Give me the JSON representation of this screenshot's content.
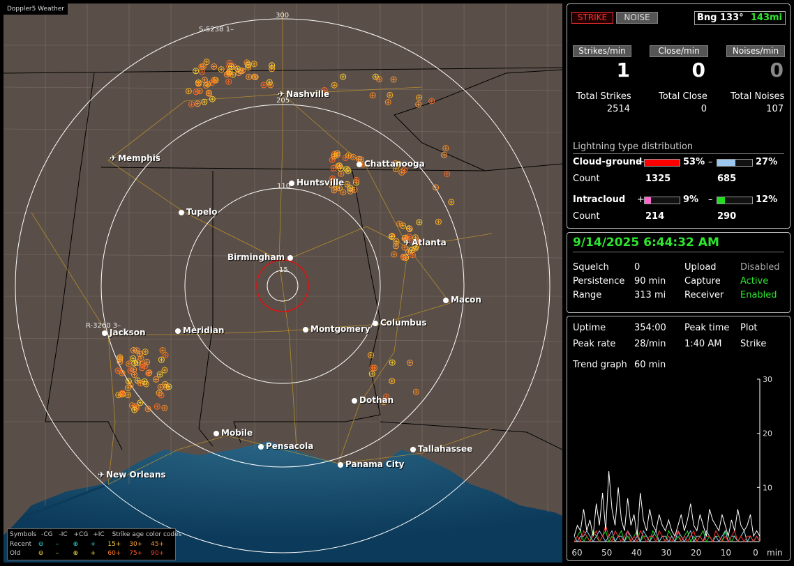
{
  "app_title": "Doppler5 Weather",
  "map": {
    "range_labels": [
      "300",
      "205",
      "110",
      "15"
    ],
    "tracks": [
      "S-5238 1–",
      "R-3260 3–"
    ],
    "cities": [
      {
        "name": "Nashville",
        "type": "airport"
      },
      {
        "name": "Memphis",
        "type": "airport"
      },
      {
        "name": "Chattanooga",
        "type": "city"
      },
      {
        "name": "Huntsville",
        "type": "city"
      },
      {
        "name": "Tupelo",
        "type": "city"
      },
      {
        "name": "Atlanta",
        "type": "airport"
      },
      {
        "name": "Birmingham",
        "type": "city"
      },
      {
        "name": "Macon",
        "type": "city"
      },
      {
        "name": "Jackson",
        "type": "city"
      },
      {
        "name": "Meridian",
        "type": "city"
      },
      {
        "name": "Montgomery",
        "type": "city"
      },
      {
        "name": "Columbus",
        "type": "city"
      },
      {
        "name": "Dothan",
        "type": "city"
      },
      {
        "name": "Mobile",
        "type": "city"
      },
      {
        "name": "Pensacola",
        "type": "city"
      },
      {
        "name": "Tallahassee",
        "type": "city"
      },
      {
        "name": "Panama City",
        "type": "city"
      },
      {
        "name": "New Orleans",
        "type": "airport"
      }
    ]
  },
  "legend": {
    "header": [
      "Symbols",
      "-CG",
      "-IC",
      "+CG",
      "+IC",
      "Strike age color codes"
    ],
    "recent_label": "Recent",
    "old_label": "Old",
    "recent_ages": [
      "15+",
      "30+",
      "45+"
    ],
    "old_ages": [
      "60+",
      "75+",
      "90+"
    ]
  },
  "top": {
    "strike_button": "STRIKE",
    "noise_button": "NOISE",
    "bearing": "Bng 133°",
    "distance": "143mi",
    "rate_labels": [
      "Strikes/min",
      "Close/min",
      "Noises/min"
    ],
    "rates": [
      "1",
      "0",
      "0"
    ],
    "total_labels": [
      "Total Strikes",
      "Total Close",
      "Total Noises"
    ],
    "totals": [
      "2514",
      "0",
      "107"
    ],
    "dist_title": "Lightning type distribution",
    "cg_label": "Cloud-ground",
    "ic_label": "Intracloud",
    "count_label": "Count",
    "cg_pos": {
      "sign": "+",
      "pct": "53%",
      "value": 53,
      "color": "#ff0000",
      "count": "1325"
    },
    "cg_neg": {
      "sign": "–",
      "pct": "27%",
      "value": 27,
      "color": "#9cc8f0",
      "count": "685"
    },
    "ic_pos": {
      "sign": "+",
      "pct": "9%",
      "value": 9,
      "color": "#ff66cc",
      "count": "214"
    },
    "ic_neg": {
      "sign": "–",
      "pct": "12%",
      "value": 12,
      "color": "#22dd22",
      "count": "290"
    }
  },
  "status": {
    "datetime": "9/14/2025 6:44:32 AM",
    "rows": [
      [
        "Squelch",
        "0",
        "Upload",
        "Disabled"
      ],
      [
        "Persistence",
        "90 min",
        "Capture",
        "Active"
      ],
      [
        "Range",
        "313 mi",
        "Receiver",
        "Enabled"
      ]
    ]
  },
  "stats": {
    "uptime_label": "Uptime",
    "uptime": "354:00",
    "peak_time_label": "Peak time",
    "peak_time": "1:40 AM",
    "plot_label": "Plot",
    "plot_value": "Strike",
    "peak_rate_label": "Peak rate",
    "peak_rate": "28/min",
    "trend_label": "Trend graph",
    "trend_value": "60 min"
  },
  "chart_data": {
    "type": "line",
    "xlabel": "min",
    "x_ticks": [
      "60",
      "50",
      "40",
      "30",
      "20",
      "10",
      "0"
    ],
    "y_ticks": [
      "30",
      "20",
      "10"
    ],
    "ylim": [
      0,
      30
    ],
    "xlim": [
      60,
      0
    ],
    "series": [
      {
        "color": "#ffffff",
        "values": [
          1,
          3,
          2,
          6,
          2,
          4,
          1,
          7,
          3,
          9,
          2,
          13,
          6,
          3,
          10,
          4,
          2,
          8,
          3,
          5,
          1,
          9,
          4,
          2,
          6,
          3,
          2,
          5,
          3,
          2,
          4,
          2,
          1,
          3,
          5,
          2,
          4,
          7,
          3,
          2,
          5,
          3,
          1,
          6,
          4,
          3,
          2,
          5,
          3,
          1,
          4,
          2,
          6,
          3,
          2,
          3,
          5,
          1,
          2,
          1
        ]
      },
      {
        "color": "#ff3030",
        "values": [
          0,
          1,
          0,
          2,
          1,
          0,
          1,
          2,
          0,
          1,
          3,
          1,
          0,
          2,
          1,
          0,
          1,
          2,
          0,
          1,
          0,
          2,
          1,
          0,
          1,
          1,
          0,
          2,
          1,
          0,
          1,
          0,
          1,
          2,
          0,
          1,
          0,
          1,
          2,
          0,
          1,
          0,
          1,
          1,
          0,
          2,
          1,
          0,
          1,
          0,
          1,
          2,
          0,
          1,
          0,
          1,
          1,
          0,
          1,
          0
        ]
      },
      {
        "color": "#9cc8f0",
        "values": [
          1,
          0,
          1,
          1,
          2,
          1,
          0,
          1,
          2,
          1,
          0,
          1,
          2,
          0,
          1,
          1,
          0,
          2,
          1,
          0,
          1,
          0,
          2,
          1,
          0,
          1,
          2,
          0,
          1,
          1,
          0,
          1,
          0,
          2,
          1,
          0,
          1,
          2,
          0,
          1,
          1,
          0,
          2,
          1,
          0,
          1,
          0,
          1,
          2,
          0,
          1,
          1,
          0,
          1,
          2,
          0,
          1,
          0,
          1,
          0
        ]
      },
      {
        "color": "#22dd22",
        "values": [
          0,
          1,
          2,
          0,
          1,
          0,
          2,
          1,
          0,
          1,
          2,
          0,
          1,
          0,
          1,
          2,
          0,
          1,
          0,
          1,
          2,
          0,
          1,
          1,
          0,
          2,
          1,
          0,
          1,
          0,
          2,
          1,
          0,
          1,
          0,
          1,
          2,
          0,
          1,
          0,
          1,
          2,
          0,
          1,
          0,
          1,
          1,
          0,
          2,
          1,
          0,
          1,
          0,
          1,
          2,
          0,
          1,
          0,
          1,
          0
        ]
      }
    ]
  }
}
